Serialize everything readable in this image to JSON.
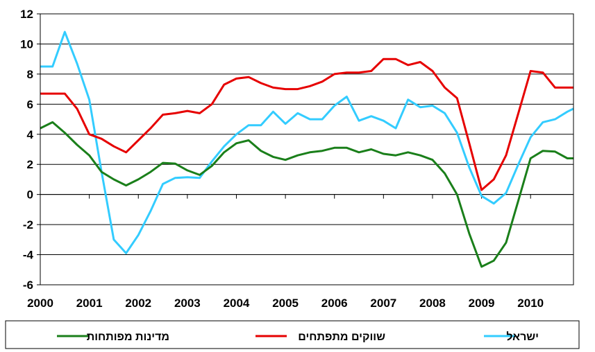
{
  "chart_data": {
    "type": "line",
    "title": "",
    "xlabel": "",
    "ylabel": "",
    "ylim": [
      -6,
      12
    ],
    "yticks": [
      -6,
      -4,
      -2,
      0,
      2,
      4,
      6,
      8,
      10,
      12
    ],
    "xlim": [
      2000,
      2010.875
    ],
    "xticks": [
      "2000",
      "2001",
      "2002",
      "2003",
      "2004",
      "2005",
      "2006",
      "2007",
      "2008",
      "2009",
      "2010"
    ],
    "grid": true,
    "legend_position": "bottom",
    "x": [
      2000,
      2000.25,
      2000.5,
      2000.75,
      2001,
      2001.25,
      2001.5,
      2001.75,
      2002,
      2002.25,
      2002.5,
      2002.75,
      2003,
      2003.25,
      2003.5,
      2003.75,
      2004,
      2004.25,
      2004.5,
      2004.75,
      2005,
      2005.25,
      2005.5,
      2005.75,
      2006,
      2006.25,
      2006.5,
      2006.75,
      2007,
      2007.25,
      2007.5,
      2007.75,
      2008,
      2008.25,
      2008.5,
      2008.75,
      2009,
      2009.25,
      2009.5,
      2009.75,
      2010,
      2010.25,
      2010.5,
      2010.75,
      2010.875
    ],
    "series": [
      {
        "name": "ישראל",
        "color": "#33CCFF",
        "values": [
          8.5,
          8.5,
          10.8,
          8.7,
          6.3,
          1.5,
          -3.0,
          -3.9,
          -2.7,
          -1.1,
          0.7,
          1.1,
          1.15,
          1.1,
          2.2,
          3.2,
          4.0,
          4.6,
          4.6,
          5.5,
          4.7,
          5.4,
          5.0,
          5.0,
          5.9,
          6.5,
          4.9,
          5.2,
          4.9,
          4.4,
          6.3,
          5.8,
          5.9,
          5.4,
          4.1,
          1.8,
          -0.1,
          -0.6,
          0.1,
          2.0,
          3.8,
          4.8,
          5.0,
          5.5,
          5.7
        ]
      },
      {
        "name": "שווקים מתפתחים",
        "color": "#E60000",
        "values": [
          6.7,
          6.7,
          6.7,
          5.7,
          4.0,
          3.7,
          3.2,
          2.8,
          3.6,
          4.4,
          5.3,
          5.4,
          5.55,
          5.4,
          6.0,
          7.3,
          7.7,
          7.8,
          7.4,
          7.1,
          7.0,
          7.0,
          7.2,
          7.5,
          8.0,
          8.1,
          8.1,
          8.2,
          9.0,
          9.0,
          8.6,
          8.8,
          8.2,
          7.1,
          6.4,
          3.4,
          0.3,
          1.0,
          2.6,
          5.4,
          8.2,
          8.1,
          7.1,
          7.1,
          7.1
        ]
      },
      {
        "name": "מדינות מפותחות",
        "color": "#1A7F1A",
        "values": [
          4.4,
          4.8,
          4.1,
          3.3,
          2.6,
          1.5,
          1.0,
          0.6,
          1.0,
          1.5,
          2.1,
          2.05,
          1.6,
          1.3,
          1.9,
          2.8,
          3.4,
          3.6,
          2.9,
          2.5,
          2.3,
          2.6,
          2.8,
          2.9,
          3.1,
          3.1,
          2.8,
          3.0,
          2.7,
          2.6,
          2.8,
          2.6,
          2.3,
          1.4,
          0.0,
          -2.6,
          -4.8,
          -4.4,
          -3.2,
          -0.4,
          2.4,
          2.9,
          2.85,
          2.4,
          2.4
        ]
      }
    ]
  }
}
